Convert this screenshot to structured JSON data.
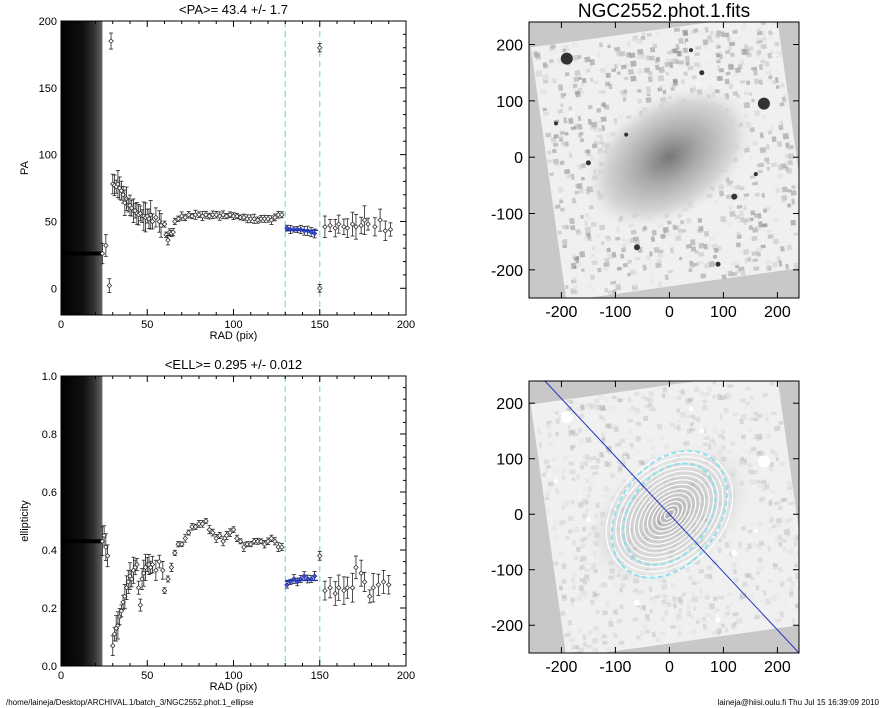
{
  "footer": {
    "path": "/home/laineja/Desktop/ARCHIVAL.1/batch_3/NGC2552.phot.1_ellipse",
    "user_stamp": "laineja@hiisi.oulu.fi  Thu Jul 15 16:39:09 2010"
  },
  "chart_data": [
    {
      "type": "scatter",
      "title": "<PA>=  43.4 +/-   1.7",
      "xlabel": "RAD (pix)",
      "ylabel": "PA",
      "xlim": [
        0,
        200
      ],
      "ylim": [
        -20,
        200
      ],
      "xticks": [
        "0",
        "50",
        "100",
        "150",
        "200"
      ],
      "yticks": [
        "0",
        "50",
        "100",
        "150",
        "200"
      ],
      "vlines": [
        130,
        150
      ],
      "fit": {
        "x": [
          130,
          149
        ],
        "y": 43.4
      },
      "inner_band": {
        "x": [
          0,
          24
        ],
        "y": 26
      },
      "points": [
        [
          24,
          26
        ],
        [
          26,
          32
        ],
        [
          28,
          2
        ],
        [
          29,
          185
        ],
        [
          30,
          78
        ],
        [
          31,
          77
        ],
        [
          32,
          76
        ],
        [
          33,
          78
        ],
        [
          34,
          75
        ],
        [
          35,
          73
        ],
        [
          36,
          70
        ],
        [
          37,
          64
        ],
        [
          38,
          67
        ],
        [
          39,
          62
        ],
        [
          40,
          62
        ],
        [
          41,
          60
        ],
        [
          42,
          58
        ],
        [
          43,
          58
        ],
        [
          44,
          56
        ],
        [
          45,
          55
        ],
        [
          46,
          56
        ],
        [
          47,
          54
        ],
        [
          48,
          54
        ],
        [
          49,
          53
        ],
        [
          50,
          54
        ],
        [
          51,
          52
        ],
        [
          52,
          55
        ],
        [
          53,
          50
        ],
        [
          55,
          53
        ],
        [
          57,
          50
        ],
        [
          58,
          47
        ],
        [
          60,
          48
        ],
        [
          61,
          40
        ],
        [
          62,
          36
        ],
        [
          63,
          42
        ],
        [
          64,
          41
        ],
        [
          65,
          42
        ],
        [
          66,
          50
        ],
        [
          68,
          52
        ],
        [
          70,
          54
        ],
        [
          72,
          53
        ],
        [
          74,
          55
        ],
        [
          76,
          54
        ],
        [
          78,
          55
        ],
        [
          80,
          55
        ],
        [
          82,
          54
        ],
        [
          84,
          55
        ],
        [
          86,
          54
        ],
        [
          88,
          55
        ],
        [
          90,
          55
        ],
        [
          92,
          54
        ],
        [
          94,
          55
        ],
        [
          96,
          54
        ],
        [
          98,
          55
        ],
        [
          100,
          54
        ],
        [
          102,
          54
        ],
        [
          104,
          53
        ],
        [
          106,
          53
        ],
        [
          108,
          52
        ],
        [
          110,
          52
        ],
        [
          112,
          52
        ],
        [
          114,
          51
        ],
        [
          116,
          52
        ],
        [
          118,
          52
        ],
        [
          120,
          52
        ],
        [
          122,
          51
        ],
        [
          124,
          53
        ],
        [
          126,
          55
        ],
        [
          128,
          55
        ],
        [
          131,
          45
        ],
        [
          133,
          44
        ],
        [
          135,
          44
        ],
        [
          137,
          44
        ],
        [
          139,
          44
        ],
        [
          141,
          43
        ],
        [
          143,
          43
        ],
        [
          145,
          42
        ],
        [
          147,
          41
        ],
        [
          150,
          180
        ],
        [
          150,
          0
        ],
        [
          153,
          46
        ],
        [
          156,
          47
        ],
        [
          159,
          45
        ],
        [
          161,
          48
        ],
        [
          164,
          46
        ],
        [
          166,
          45
        ],
        [
          169,
          48
        ],
        [
          171,
          46
        ],
        [
          174,
          47
        ],
        [
          176,
          51
        ],
        [
          178,
          48
        ],
        [
          182,
          46
        ],
        [
          185,
          51
        ],
        [
          188,
          43
        ],
        [
          191,
          44
        ]
      ]
    },
    {
      "type": "scatter",
      "title": "<ELL>= 0.295 +/-  0.012",
      "xlabel": "RAD (pix)",
      "ylabel": "ellipticity",
      "xlim": [
        0,
        200
      ],
      "ylim": [
        0,
        1.0
      ],
      "xticks": [
        "0",
        "50",
        "100",
        "150",
        "200"
      ],
      "yticks": [
        "0.0",
        "0.2",
        "0.4",
        "0.6",
        "0.8",
        "1.0"
      ],
      "vlines": [
        130,
        150
      ],
      "fit": {
        "x": [
          130,
          149
        ],
        "y": 0.295
      },
      "inner_band": {
        "x": [
          0,
          24
        ],
        "y": 0.43
      },
      "points": [
        [
          24,
          0.43
        ],
        [
          25,
          0.45
        ],
        [
          26,
          0.41
        ],
        [
          27,
          0.38
        ],
        [
          30,
          0.07
        ],
        [
          31,
          0.11
        ],
        [
          32,
          0.13
        ],
        [
          33,
          0.14
        ],
        [
          34,
          0.17
        ],
        [
          35,
          0.19
        ],
        [
          36,
          0.22
        ],
        [
          37,
          0.24
        ],
        [
          38,
          0.27
        ],
        [
          39,
          0.29
        ],
        [
          40,
          0.31
        ],
        [
          41,
          0.3
        ],
        [
          42,
          0.33
        ],
        [
          43,
          0.34
        ],
        [
          44,
          0.35
        ],
        [
          45,
          0.27
        ],
        [
          46,
          0.21
        ],
        [
          47,
          0.3
        ],
        [
          48,
          0.32
        ],
        [
          49,
          0.34
        ],
        [
          50,
          0.35
        ],
        [
          51,
          0.35
        ],
        [
          52,
          0.34
        ],
        [
          53,
          0.35
        ],
        [
          55,
          0.33
        ],
        [
          57,
          0.36
        ],
        [
          59,
          0.33
        ],
        [
          60,
          0.26
        ],
        [
          62,
          0.3
        ],
        [
          64,
          0.34
        ],
        [
          66,
          0.39
        ],
        [
          68,
          0.42
        ],
        [
          70,
          0.42
        ],
        [
          72,
          0.44
        ],
        [
          74,
          0.46
        ],
        [
          76,
          0.48
        ],
        [
          78,
          0.48
        ],
        [
          80,
          0.49
        ],
        [
          82,
          0.49
        ],
        [
          84,
          0.5
        ],
        [
          86,
          0.47
        ],
        [
          88,
          0.46
        ],
        [
          90,
          0.44
        ],
        [
          92,
          0.45
        ],
        [
          94,
          0.43
        ],
        [
          96,
          0.45
        ],
        [
          98,
          0.46
        ],
        [
          100,
          0.47
        ],
        [
          102,
          0.44
        ],
        [
          104,
          0.43
        ],
        [
          106,
          0.41
        ],
        [
          108,
          0.42
        ],
        [
          110,
          0.42
        ],
        [
          112,
          0.43
        ],
        [
          114,
          0.43
        ],
        [
          116,
          0.43
        ],
        [
          118,
          0.42
        ],
        [
          120,
          0.43
        ],
        [
          122,
          0.44
        ],
        [
          124,
          0.43
        ],
        [
          126,
          0.41
        ],
        [
          128,
          0.41
        ],
        [
          131,
          0.28
        ],
        [
          133,
          0.29
        ],
        [
          135,
          0.3
        ],
        [
          137,
          0.29
        ],
        [
          139,
          0.3
        ],
        [
          141,
          0.31
        ],
        [
          143,
          0.3
        ],
        [
          145,
          0.3
        ],
        [
          147,
          0.31
        ],
        [
          150,
          0.38
        ],
        [
          153,
          0.26
        ],
        [
          156,
          0.27
        ],
        [
          159,
          0.25
        ],
        [
          161,
          0.27
        ],
        [
          164,
          0.26
        ],
        [
          166,
          0.27
        ],
        [
          169,
          0.27
        ],
        [
          171,
          0.34
        ],
        [
          174,
          0.32
        ],
        [
          176,
          0.29
        ],
        [
          179,
          0.24
        ],
        [
          181,
          0.27
        ],
        [
          184,
          0.28
        ],
        [
          187,
          0.29
        ],
        [
          190,
          0.28
        ]
      ]
    },
    {
      "type": "heatmap",
      "title": "NGC2552.phot.1.fits",
      "xlim": [
        -260,
        240
      ],
      "ylim": [
        -250,
        240
      ],
      "xticks": [
        "-200",
        "-100",
        "0",
        "100",
        "200"
      ],
      "yticks": [
        "-200",
        "-100",
        "0",
        "100",
        "200"
      ]
    },
    {
      "type": "heatmap",
      "title": "",
      "xlim": [
        -260,
        240
      ],
      "ylim": [
        -250,
        240
      ],
      "xticks": [
        "-200",
        "-100",
        "0",
        "100",
        "200"
      ],
      "yticks": [
        "-200",
        "-100",
        "0",
        "100",
        "200"
      ],
      "ellipse": {
        "pa": 43.4,
        "ell": 0.295
      }
    }
  ]
}
